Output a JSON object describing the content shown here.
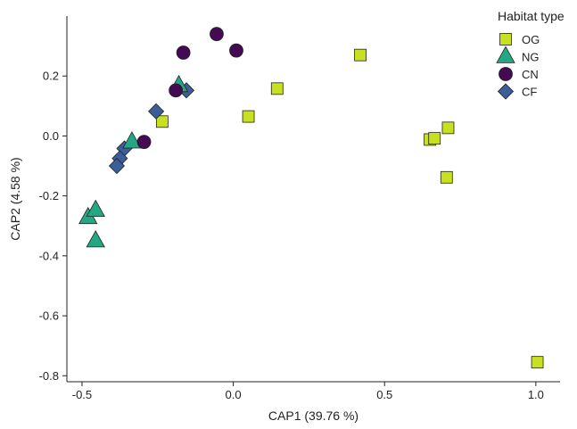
{
  "chart_data": {
    "type": "scatter",
    "title": "",
    "xlabel": "CAP1 (39.76 %)",
    "ylabel": "CAP2 (4.58 %)",
    "xlim": [
      -0.55,
      1.08
    ],
    "ylim": [
      -0.82,
      0.4
    ],
    "xticks": [
      -0.5,
      0.0,
      0.5,
      1.0
    ],
    "xtick_labels": [
      "-0.5",
      "0.0",
      "0.5",
      "1.0"
    ],
    "yticks": [
      -0.8,
      -0.6,
      -0.4,
      -0.2,
      0.0,
      0.2
    ],
    "ytick_labels": [
      "-0.8",
      "-0.6",
      "-0.4",
      "-0.2",
      "0.0",
      "0.2"
    ],
    "grid": false,
    "legend": {
      "title": "Habitat type",
      "placement": "top-right"
    },
    "series": [
      {
        "name": "OG",
        "marker": "square",
        "color": "#c7e01f",
        "points": [
          [
            0.42,
            0.27
          ],
          [
            0.145,
            0.158
          ],
          [
            0.05,
            0.065
          ],
          [
            -0.235,
            0.048
          ],
          [
            0.65,
            -0.012
          ],
          [
            0.665,
            -0.008
          ],
          [
            0.71,
            0.027
          ],
          [
            0.705,
            -0.138
          ],
          [
            1.005,
            -0.755
          ]
        ]
      },
      {
        "name": "NG",
        "marker": "triangle",
        "color": "#23a884",
        "points": [
          [
            -0.18,
            0.168
          ],
          [
            -0.335,
            -0.02
          ],
          [
            -0.48,
            -0.272
          ],
          [
            -0.455,
            -0.248
          ],
          [
            -0.455,
            -0.35
          ]
        ]
      },
      {
        "name": "CN",
        "marker": "circle",
        "color": "#440a54",
        "points": [
          [
            -0.055,
            0.34
          ],
          [
            0.01,
            0.285
          ],
          [
            -0.165,
            0.278
          ],
          [
            -0.19,
            0.152
          ],
          [
            -0.295,
            -0.02
          ]
        ]
      },
      {
        "name": "CF",
        "marker": "diamond",
        "color": "#3b5d98",
        "points": [
          [
            -0.255,
            0.082
          ],
          [
            -0.155,
            0.152
          ],
          [
            -0.36,
            -0.042
          ],
          [
            -0.375,
            -0.075
          ],
          [
            -0.385,
            -0.1
          ]
        ]
      }
    ]
  }
}
